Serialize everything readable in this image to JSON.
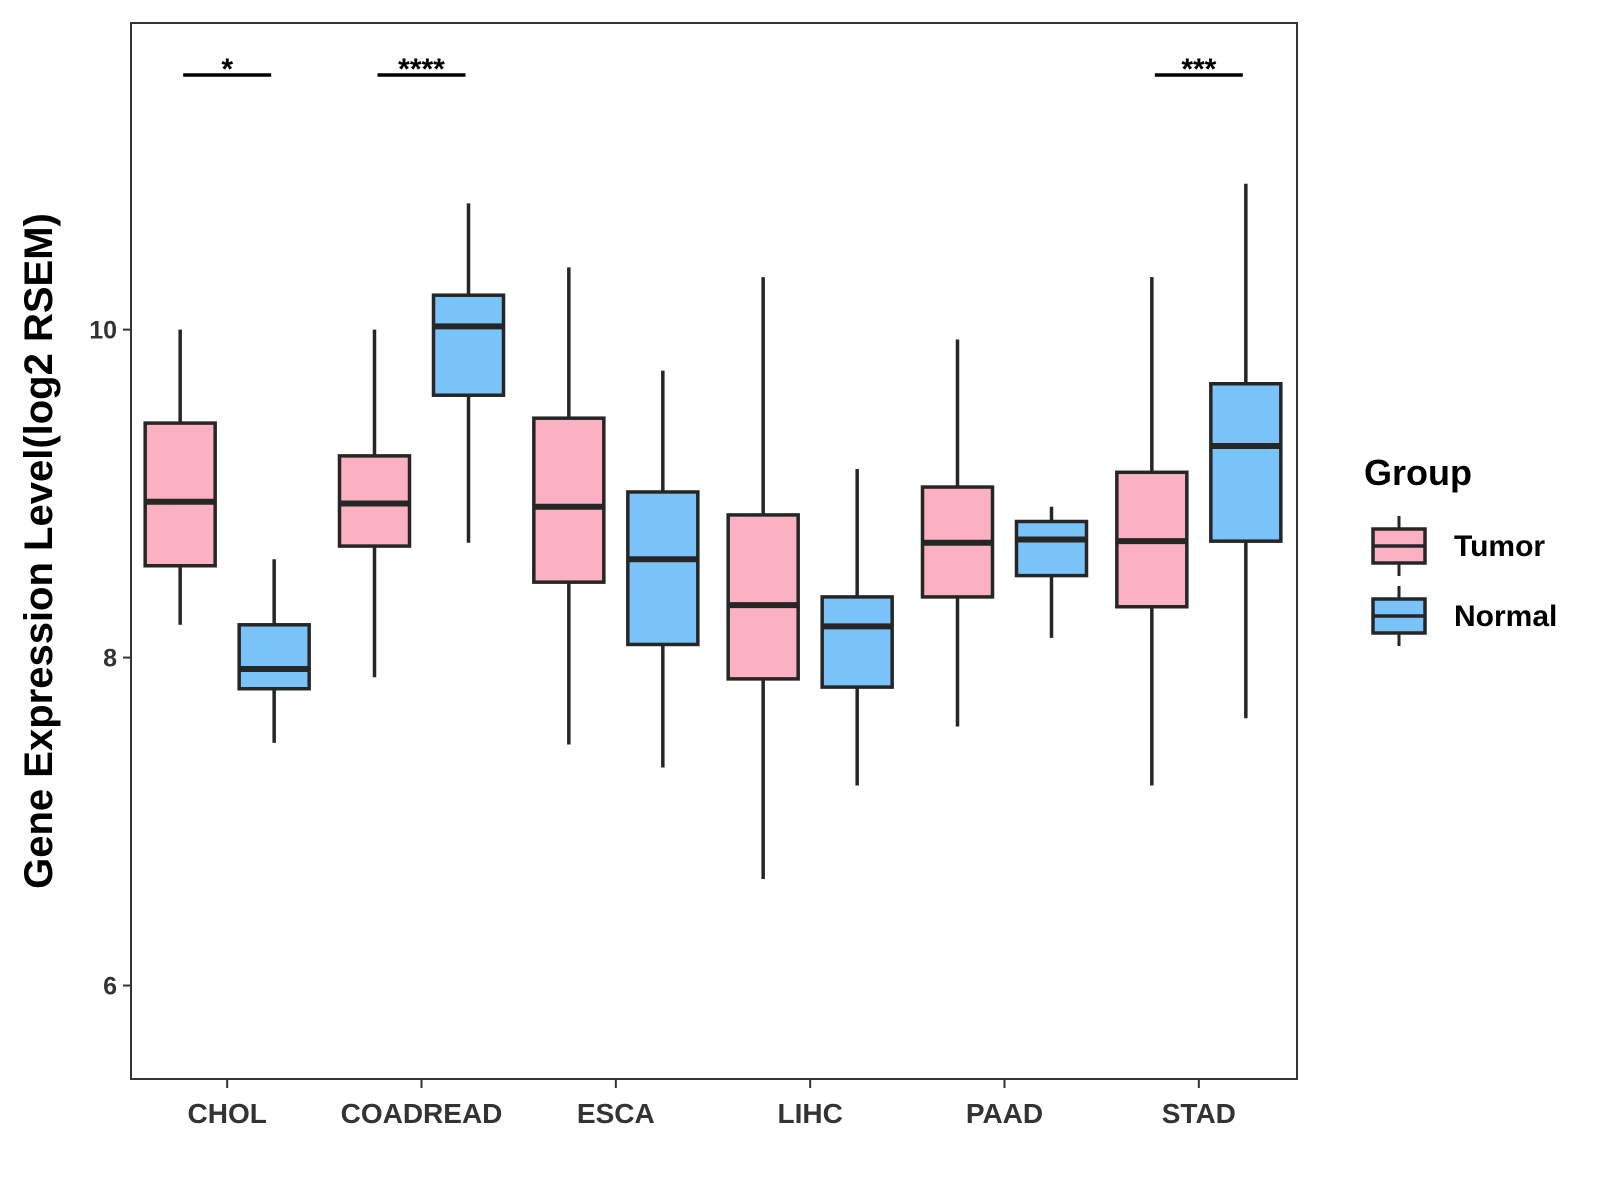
{
  "chart_data": {
    "type": "boxplot",
    "title": "",
    "xlabel": "",
    "ylabel": "Gene Expression Level(log2 RSEM)",
    "ylim": [
      5.43,
      11.87
    ],
    "yticks": [
      6,
      8,
      10
    ],
    "grid": false,
    "legend": {
      "title": "Group",
      "placement": "right",
      "entries": [
        {
          "name": "Tumor",
          "color": "#FBB1C2"
        },
        {
          "name": "Normal",
          "color": "#79C3F8"
        }
      ]
    },
    "categories": [
      "CHOL",
      "COADREAD",
      "ESCA",
      "LIHC",
      "PAAD",
      "STAD"
    ],
    "series": [
      {
        "name": "Tumor",
        "color": "#FBB1C2",
        "boxes": [
          {
            "min": 8.2,
            "q1": 8.56,
            "median": 8.95,
            "q3": 9.43,
            "max": 10.0
          },
          {
            "min": 7.88,
            "q1": 8.68,
            "median": 8.94,
            "q3": 9.23,
            "max": 10.0
          },
          {
            "min": 7.47,
            "q1": 8.46,
            "median": 8.92,
            "q3": 9.46,
            "max": 10.38
          },
          {
            "min": 6.65,
            "q1": 7.87,
            "median": 8.32,
            "q3": 8.87,
            "max": 10.32
          },
          {
            "min": 7.58,
            "q1": 8.37,
            "median": 8.7,
            "q3": 9.04,
            "max": 9.94
          },
          {
            "min": 7.22,
            "q1": 8.31,
            "median": 8.71,
            "q3": 9.13,
            "max": 10.32
          }
        ]
      },
      {
        "name": "Normal",
        "color": "#79C3F8",
        "boxes": [
          {
            "min": 7.48,
            "q1": 7.81,
            "median": 7.93,
            "q3": 8.2,
            "max": 8.6
          },
          {
            "min": 8.7,
            "q1": 9.6,
            "median": 10.02,
            "q3": 10.21,
            "max": 10.77
          },
          {
            "min": 7.33,
            "q1": 8.08,
            "median": 8.6,
            "q3": 9.01,
            "max": 9.75
          },
          {
            "min": 7.22,
            "q1": 7.82,
            "median": 8.19,
            "q3": 8.37,
            "max": 9.15
          },
          {
            "min": 8.12,
            "q1": 8.5,
            "median": 8.72,
            "q3": 8.83,
            "max": 8.92
          },
          {
            "min": 7.63,
            "q1": 8.71,
            "median": 9.29,
            "q3": 9.67,
            "max": 10.89
          }
        ]
      }
    ],
    "annotations": [
      {
        "category": "CHOL",
        "label": "*"
      },
      {
        "category": "COADREAD",
        "label": "****"
      },
      {
        "category": "STAD",
        "label": "***"
      }
    ]
  }
}
